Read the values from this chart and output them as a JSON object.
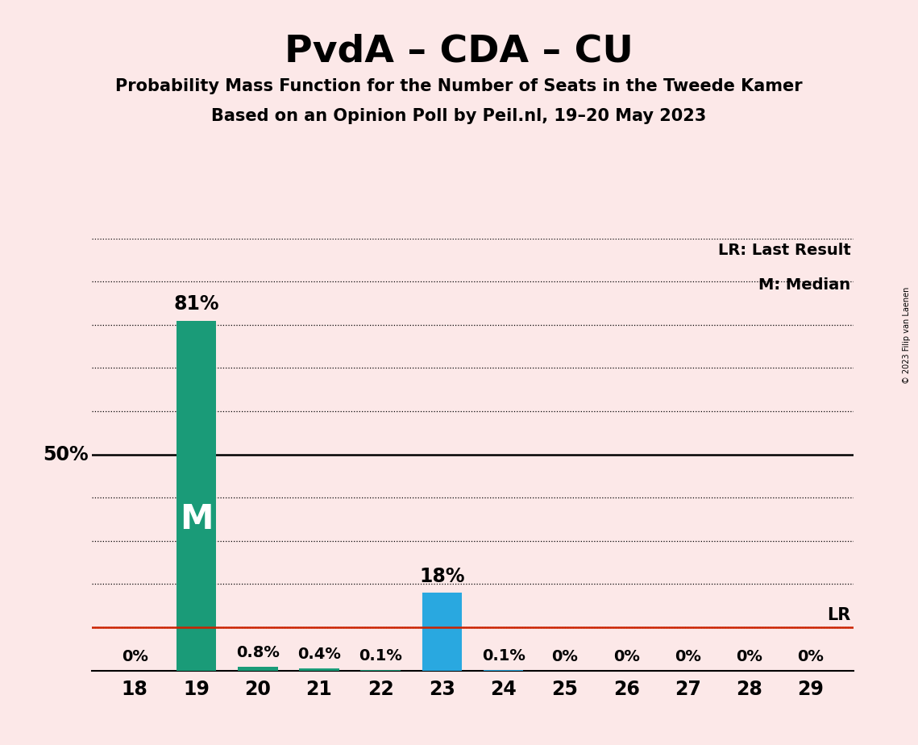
{
  "title": "PvdA – CDA – CU",
  "subtitle1": "Probability Mass Function for the Number of Seats in the Tweede Kamer",
  "subtitle2": "Based on an Opinion Poll by Peil.nl, 19–20 May 2023",
  "copyright": "© 2023 Filip van Laenen",
  "categories": [
    18,
    19,
    20,
    21,
    22,
    23,
    24,
    25,
    26,
    27,
    28,
    29
  ],
  "values": [
    0.0,
    81.0,
    0.8,
    0.4,
    0.1,
    18.0,
    0.1,
    0.0,
    0.0,
    0.0,
    0.0,
    0.0
  ],
  "median_seat": 19,
  "lr_seat": 29,
  "lr_value": 10.0,
  "background_color": "#fce8e8",
  "teal_color": "#1a9b78",
  "blue_color": "#29a8e0",
  "ylim": [
    0,
    100
  ],
  "legend_lr": "LR: Last Result",
  "legend_m": "M: Median",
  "annotations": {
    "18": "0%",
    "19": "81%",
    "20": "0.8%",
    "21": "0.4%",
    "22": "0.1%",
    "23": "18%",
    "24": "0.1%",
    "25": "0%",
    "26": "0%",
    "27": "0%",
    "28": "0%",
    "29": "0%"
  }
}
